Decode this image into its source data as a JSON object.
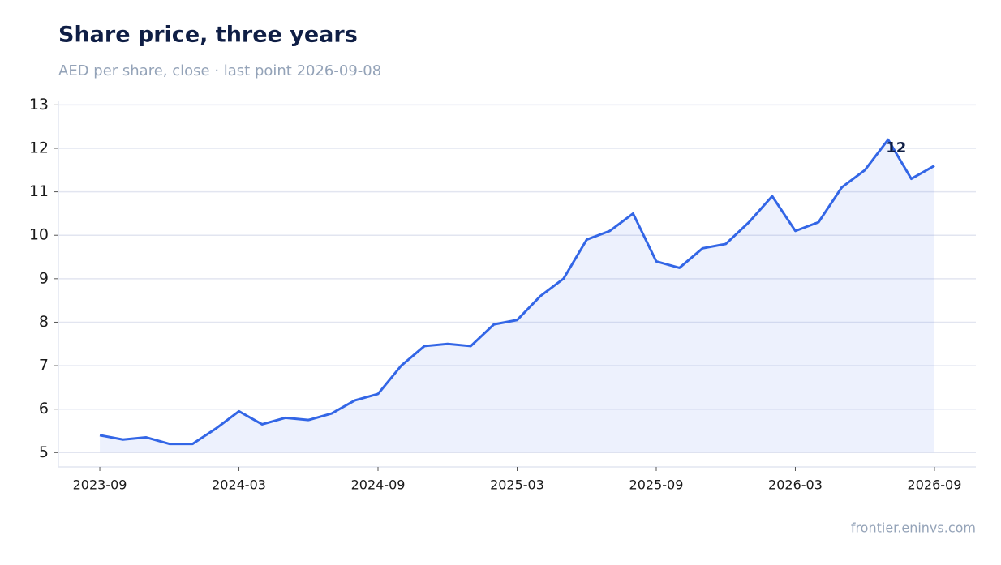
{
  "chart_data": {
    "type": "line",
    "title": "Share price, three years",
    "subtitle": "AED per share, close · last point 2026-09-08",
    "source": "frontier.eninvs.com",
    "x": [
      "2023-09",
      "2023-10",
      "2023-11",
      "2023-12",
      "2024-01",
      "2024-02",
      "2024-03",
      "2024-04",
      "2024-05",
      "2024-06",
      "2024-07",
      "2024-08",
      "2024-09",
      "2024-10",
      "2024-11",
      "2024-12",
      "2025-01",
      "2025-02",
      "2025-03",
      "2025-04",
      "2025-05",
      "2025-06",
      "2025-07",
      "2025-08",
      "2025-09",
      "2025-10",
      "2025-11",
      "2025-12",
      "2026-01",
      "2026-02",
      "2026-03",
      "2026-04",
      "2026-05",
      "2026-06",
      "2026-07",
      "2026-08",
      "2026-09"
    ],
    "series": [
      {
        "name": "Close",
        "color": "#3366e6",
        "values": [
          5.4,
          5.3,
          5.35,
          5.2,
          5.2,
          5.55,
          5.95,
          5.65,
          5.8,
          5.75,
          5.9,
          6.2,
          6.35,
          7.0,
          7.45,
          7.5,
          7.45,
          7.95,
          8.05,
          8.6,
          9.0,
          9.9,
          10.1,
          10.5,
          9.4,
          9.25,
          9.7,
          9.8,
          10.3,
          10.9,
          10.1,
          10.3,
          11.1,
          11.5,
          12.2,
          11.3,
          11.6
        ]
      }
    ],
    "annotations": [
      {
        "x": "2026-07",
        "y": 12,
        "label": "12"
      }
    ],
    "ylim": [
      4.67,
      13.1
    ],
    "yticks": [
      5,
      6,
      7,
      8,
      9,
      10,
      11,
      12,
      13
    ],
    "xticks": [
      "2023-09",
      "2024-03",
      "2024-09",
      "2025-03",
      "2025-09",
      "2026-03",
      "2026-09"
    ],
    "grid": true,
    "area_fill": true
  }
}
